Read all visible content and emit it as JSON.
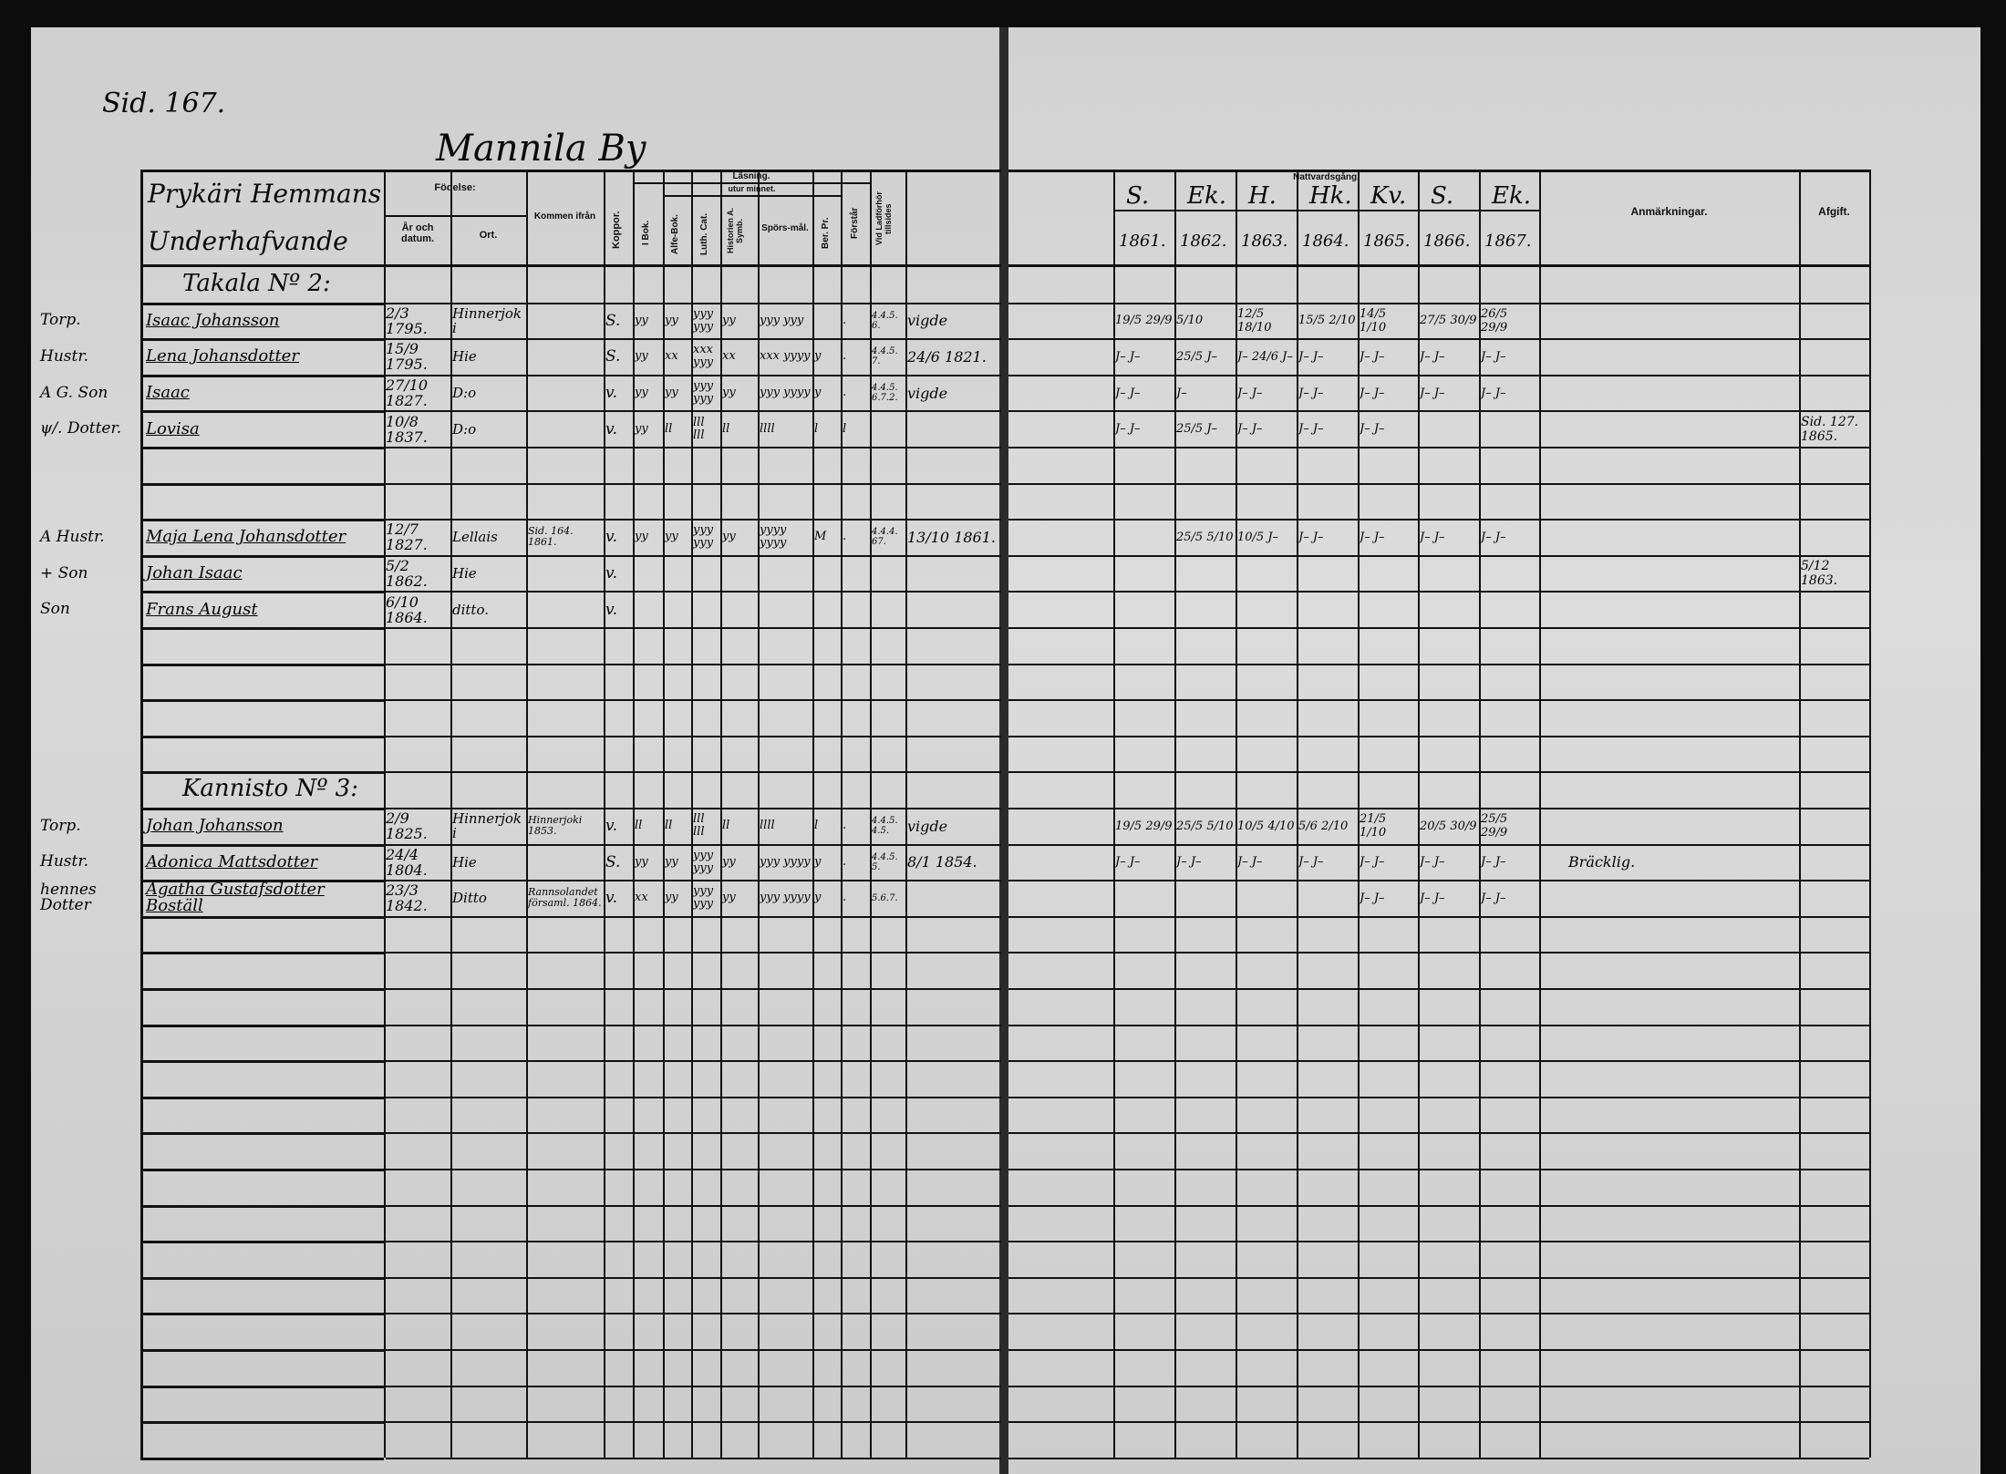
{
  "page_ref": "Sid. 167.",
  "village": "Mannila By",
  "left_header": {
    "household_title_1": "Prykäri Hemmans",
    "household_title_2": "Underhafvande",
    "birth": "Födelse:",
    "year_date": "År och datum.",
    "place": "Ort.",
    "came_from": "Kommen ifrån",
    "smallpox": "Koppor.",
    "reading": "Läsning.",
    "by_heart": "utur minnet.",
    "in_book": "I Bok.",
    "abc_book": "Alfe-Bok.",
    "luth_cat": "Luth. Cat.",
    "hist_symb": "Historien A. Symb.",
    "questions": "Spörs-mål.",
    "ber_pr": "Ber. Pr.",
    "understands": "Förstår",
    "exam": "Vid Ladförhör tillsides"
  },
  "right_header": {
    "communion": "Nattvardsgång.",
    "villages": [
      "S.",
      "Ek.",
      "H.",
      "Hk.",
      "Kv.",
      "S.",
      "Ek."
    ],
    "years": [
      "1861.",
      "1862.",
      "1863.",
      "1864.",
      "1865.",
      "1866.",
      "1867."
    ],
    "remarks": "Anmärkningar.",
    "departure": "Afgift."
  },
  "sections": [
    {
      "row": 0,
      "title": "Takala Nº 2:"
    },
    {
      "row": 14,
      "title": "Kannisto Nº 3:"
    }
  ],
  "persons": [
    {
      "row": 1,
      "role": "Torp.",
      "name": "Isaac Johansson",
      "date": "2/3 1795.",
      "place": "Hinnerjoki",
      "from": "",
      "kopper": "S.",
      "reading": [
        "yy",
        "yy",
        "yyy yyy",
        "yy",
        "yyy yyy",
        "",
        "."
      ],
      "exam": "4.4.5. 6.",
      "note": "vigde",
      "communion": [
        "19/5 29/9",
        "5/10",
        "12/5 18/10",
        "15/5 2/10",
        "14/5 1/10",
        "27/5 30/9",
        "26/5 29/9"
      ],
      "remarks": "",
      "departure": ""
    },
    {
      "row": 2,
      "role": "Hustr.",
      "name": "Lena Johansdotter",
      "date": "15/9 1795.",
      "place": "Hie",
      "from": "",
      "kopper": "S.",
      "reading": [
        "yy",
        "xx",
        "xxx yyy",
        "xx",
        "xxx yyyy",
        "y",
        "."
      ],
      "exam": "4.4.5. 7.",
      "note": "24/6 1821.",
      "communion": [
        "J– J–",
        "25/5 J–",
        "J– 24/6 J–",
        "J– J–",
        "J– J–",
        "J– J–",
        "J– J–"
      ],
      "remarks": "",
      "departure": ""
    },
    {
      "row": 3,
      "role": "A G. Son",
      "name": "Isaac",
      "date": "27/10 1827.",
      "place": "D:o",
      "from": "",
      "kopper": "v.",
      "reading": [
        "yy",
        "yy",
        "yyy yyy",
        "yy",
        "yyy yyyy",
        "y",
        "."
      ],
      "exam": "4.4.5. 6.7.2.",
      "note": "vigde",
      "communion": [
        "J– J–",
        "J–",
        "J– J–",
        "J– J–",
        "J– J–",
        "J– J–",
        "J– J–"
      ],
      "remarks": "",
      "departure": ""
    },
    {
      "row": 4,
      "role": "ψ/. Dotter.",
      "name": "Lovisa",
      "date": "10/8 1837.",
      "place": "D:o",
      "from": "",
      "kopper": "v.",
      "reading": [
        "yy",
        "ll",
        "lll lll",
        "ll",
        "llll",
        "l",
        "l"
      ],
      "exam": "",
      "note": "",
      "communion": [
        "J– J–",
        "25/5 J–",
        "J– J–",
        "J– J–",
        "J– J–",
        "",
        ""
      ],
      "remarks": "",
      "departure": "Sid. 127. 1865."
    },
    {
      "row": 7,
      "role": "A Hustr.",
      "name": "Maja Lena Johansdotter",
      "date": "12/7 1827.",
      "place": "Lellais",
      "from": "Sid. 164. 1861.",
      "kopper": "v.",
      "reading": [
        "yy",
        "yy",
        "yyy yyy",
        "yy",
        "yyyy yyyy",
        "M",
        "."
      ],
      "exam": "4.4.4. 67.",
      "note": "13/10 1861.",
      "communion": [
        "",
        "25/5 5/10",
        "10/5 J–",
        "J– J–",
        "J– J–",
        "J– J–",
        "J– J–"
      ],
      "remarks": "",
      "departure": ""
    },
    {
      "row": 8,
      "role": "+ Son",
      "name": "Johan Isaac",
      "date": "5/2 1862.",
      "place": "Hie",
      "from": "",
      "kopper": "v.",
      "reading": [
        "",
        "",
        "",
        "",
        "",
        "",
        ""
      ],
      "exam": "",
      "note": "",
      "communion": [
        "",
        "",
        "",
        "",
        "",
        "",
        ""
      ],
      "remarks": "",
      "departure": "5/12 1863."
    },
    {
      "row": 9,
      "role": "Son",
      "name": "Frans August",
      "date": "6/10 1864.",
      "place": "ditto.",
      "from": "",
      "kopper": "v.",
      "reading": [
        "",
        "",
        "",
        "",
        "",
        "",
        ""
      ],
      "exam": "",
      "note": "",
      "communion": [
        "",
        "",
        "",
        "",
        "",
        "",
        ""
      ],
      "remarks": "",
      "departure": ""
    },
    {
      "row": 15,
      "role": "Torp.",
      "name": "Johan Johansson",
      "date": "2/9 1825.",
      "place": "Hinnerjoki",
      "from": "Hinnerjoki 1853.",
      "kopper": "v.",
      "reading": [
        "ll",
        "ll",
        "lll lll",
        "ll",
        "llll",
        "l",
        "."
      ],
      "exam": "4.4.5. 4.5.",
      "note": "vigde",
      "communion": [
        "19/5 29/9",
        "25/5 5/10",
        "10/5 4/10",
        "5/6 2/10",
        "21/5 1/10",
        "20/5 30/9",
        "25/5 29/9"
      ],
      "remarks": "",
      "departure": ""
    },
    {
      "row": 16,
      "role": "Hustr.",
      "name": "Adonica Mattsdotter",
      "date": "24/4 1804.",
      "place": "Hie",
      "from": "",
      "kopper": "S.",
      "reading": [
        "yy",
        "yy",
        "yyy yyy",
        "yy",
        "yyy yyyy",
        "y",
        "."
      ],
      "exam": "4.4.5. 5.",
      "note": "8/1 1854.",
      "communion": [
        "J– J–",
        "J– J–",
        "J– J–",
        "J– J–",
        "J– J–",
        "J– J–",
        "J– J–"
      ],
      "remarks": "Bräcklig.",
      "departure": ""
    },
    {
      "row": 17,
      "role": "hennes Dotter",
      "name": "Agatha Gustafsdotter Boställ",
      "date": "23/3 1842.",
      "place": "Ditto",
      "from": "Rannsolandet församl. 1864.",
      "kopper": "v.",
      "reading": [
        "xx",
        "yy",
        "yyy yyy",
        "yy",
        "yyy yyyy",
        "y",
        "."
      ],
      "exam": "5.6.7.",
      "note": "",
      "communion": [
        "",
        "",
        "",
        "",
        "J– J–",
        "J– J–",
        "J– J–"
      ],
      "remarks": "",
      "departure": ""
    }
  ],
  "colors": {
    "paper": "#d6d6d6",
    "ink": "#0a0a0a",
    "border": "#0c0c0c"
  }
}
